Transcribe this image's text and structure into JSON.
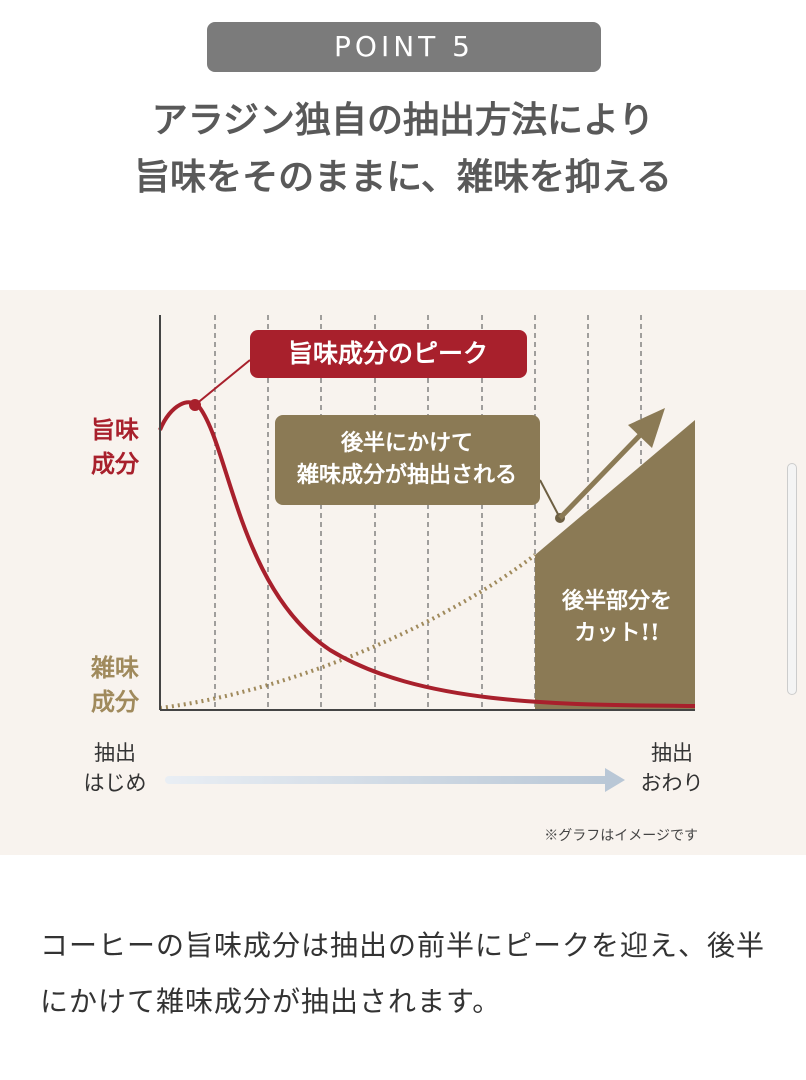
{
  "badge": "POINT 5",
  "heading": {
    "lines": [
      "アラジン独自の抽出方法により",
      "旨味をそのままに、雑味を抑える"
    ]
  },
  "graph": {
    "y_label_top": [
      "旨味",
      "成分"
    ],
    "y_label_bottom": [
      "雑味",
      "成分"
    ],
    "peak_callout": "旨味成分のピーク",
    "late_callout": [
      "後半にかけて",
      "雑味成分が抽出される"
    ],
    "cut_label": [
      "後半部分を",
      "カット!!"
    ],
    "x_start": [
      "抽出",
      "はじめ"
    ],
    "x_end": [
      "抽出",
      "おわり"
    ],
    "note": "※グラフはイメージです"
  },
  "body": "コーヒーの旨味成分は抽出の前半にピークを迎え、後半にかけて雑味成分が抽出されます。"
}
